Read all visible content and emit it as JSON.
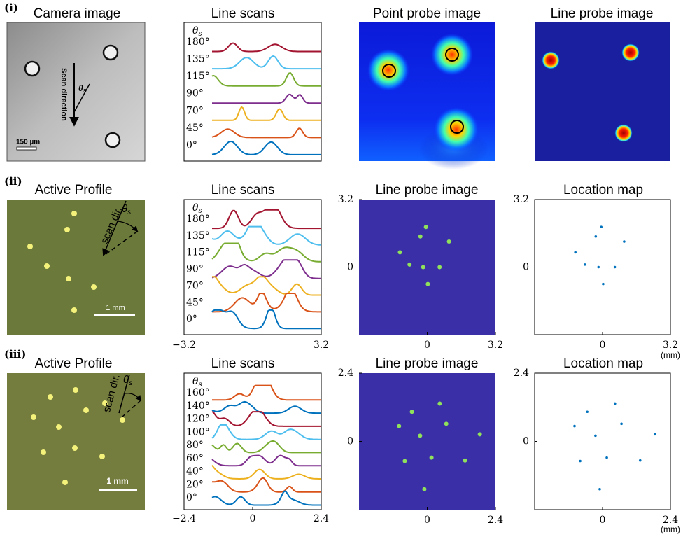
{
  "row_labels": [
    "(i)",
    "(ii)",
    "(iii)"
  ],
  "row_i": {
    "camera_image": {
      "title": "Camera image",
      "scan_label": "Scan direction",
      "angle": {
        "symbol": "θ",
        "subscript": "s"
      },
      "scale_bar": "150 µm"
    },
    "line_scans": {
      "title": "Line scans",
      "angle": {
        "symbol": "θ",
        "subscript": "s"
      },
      "labels": [
        "180°",
        "135°",
        "115°",
        "90°",
        "70°",
        "45°",
        "0°"
      ]
    },
    "point_probe_image": {
      "title": "Point probe image"
    },
    "line_probe_image": {
      "title": "Line probe image"
    }
  },
  "row_ii": {
    "active_profile": {
      "title": "Active Profile",
      "scan_label": "scan dir.",
      "angle": {
        "symbol": "θ",
        "subscript": "s"
      },
      "scale_bar": "1 mm"
    },
    "line_scans": {
      "title": "Line scans",
      "angle": {
        "symbol": "θ",
        "subscript": "s"
      },
      "labels": [
        "180°",
        "135°",
        "115°",
        "90°",
        "70°",
        "45°",
        "0°"
      ],
      "xlim": [
        -3.2,
        3.2
      ],
      "xticks": [
        {
          "value": -3.2,
          "label": "−3.2"
        },
        3.2
      ]
    },
    "line_probe_image": {
      "title": "Line probe image",
      "xlim": [
        -3.2,
        3.2
      ],
      "ylim": [
        -3.2,
        3.2
      ],
      "xticks": [
        0,
        3.2
      ],
      "yticks": [
        0,
        3.2
      ]
    },
    "location_map": {
      "title": "Location map",
      "x": [
        -0.06,
        -0.32,
        1.02,
        -1.28,
        -0.83,
        -0.19,
        0.58,
        0.03
      ],
      "y": [
        1.9,
        1.45,
        1.21,
        0.7,
        0.12,
        0.0,
        0.0,
        -0.8
      ],
      "xlim": [
        -3.2,
        3.2
      ],
      "ylim": [
        -3.2,
        3.2
      ],
      "xticks": [
        0,
        3.2
      ],
      "yticks": [
        0,
        3.2
      ],
      "unit": "(mm)"
    }
  },
  "row_iii": {
    "active_profile": {
      "title": "Active Profile",
      "scan_label": "scan dir.",
      "angle": {
        "symbol": "θ",
        "subscript": "s"
      },
      "scale_bar": "1 mm"
    },
    "line_scans": {
      "title": "Line scans",
      "angle": {
        "symbol": "θ",
        "subscript": "s"
      },
      "labels": [
        "160°",
        "140°",
        "120°",
        "100°",
        "80°",
        "60°",
        "40°",
        "20°",
        "0°"
      ],
      "xlim": [
        -2.4,
        2.4
      ],
      "xticks": [
        {
          "value": -2.4,
          "label": "−2.4"
        },
        0,
        2.4
      ]
    },
    "line_probe_image": {
      "title": "Line probe image",
      "xlim": [
        -2.4,
        2.4
      ],
      "ylim": [
        -2.4,
        2.4
      ],
      "xticks": [
        0,
        2.4
      ],
      "yticks": [
        0,
        2.4
      ]
    },
    "location_map": {
      "title": "Location map",
      "x": [
        0.44,
        -0.54,
        0.67,
        -0.99,
        -0.25,
        1.85,
        0.15,
        -0.79,
        1.33,
        -0.1
      ],
      "y": [
        1.33,
        1.04,
        0.62,
        0.54,
        0.2,
        0.25,
        -0.57,
        -0.69,
        -0.67,
        -1.68
      ],
      "xlim": [
        -2.4,
        2.4
      ],
      "ylim": [
        -2.4,
        2.4
      ],
      "xticks": [
        0,
        2.4
      ],
      "yticks": [
        0,
        2.4
      ],
      "unit": "(mm)"
    }
  }
}
